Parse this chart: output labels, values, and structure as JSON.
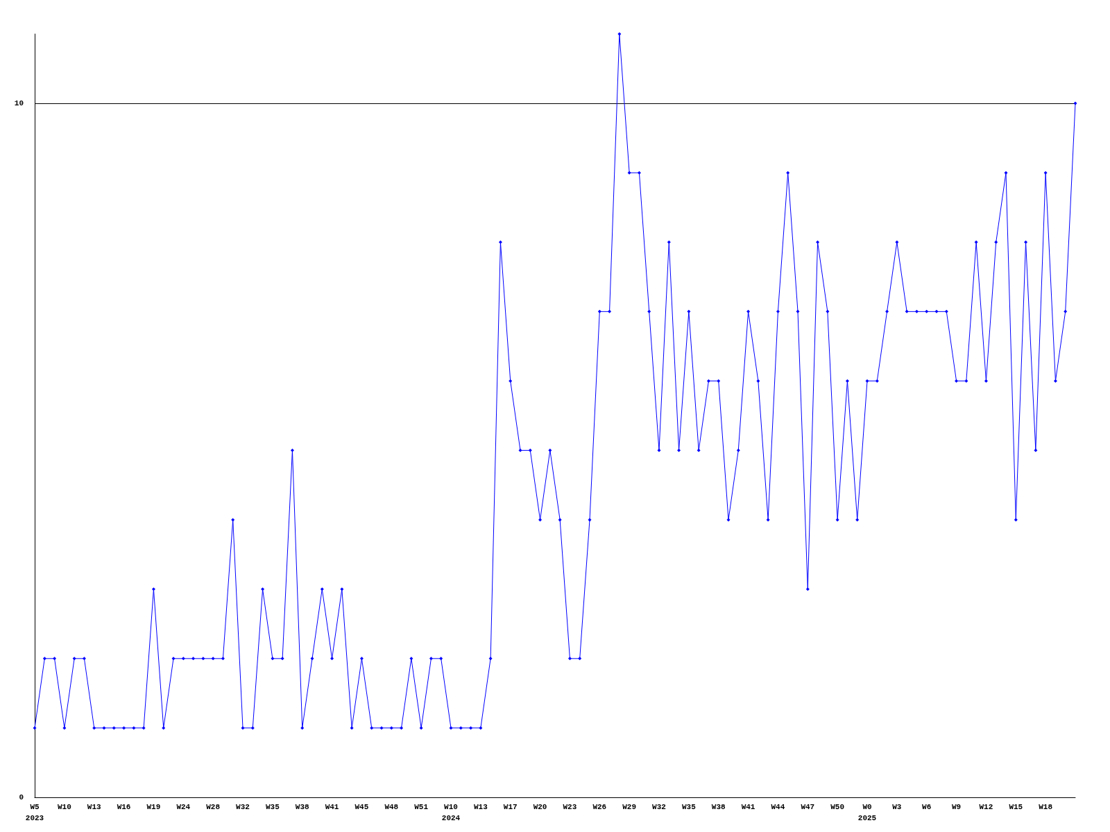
{
  "chart_data": {
    "type": "line",
    "categories": [
      "W5\n2023",
      null,
      null,
      "W10",
      null,
      null,
      "W13",
      null,
      null,
      "W16",
      null,
      null,
      "W19",
      null,
      null,
      "W24",
      null,
      null,
      "W28",
      null,
      null,
      "W32",
      null,
      null,
      "W35",
      null,
      null,
      "W38",
      null,
      null,
      "W41",
      null,
      null,
      "W45",
      null,
      null,
      "W48",
      null,
      null,
      "W51",
      null,
      null,
      "W10\n2024",
      null,
      null,
      "W13",
      null,
      null,
      "W17",
      null,
      null,
      "W20",
      null,
      null,
      "W23",
      null,
      null,
      "W26",
      null,
      null,
      "W29",
      null,
      null,
      "W32",
      null,
      null,
      "W35",
      null,
      null,
      "W38",
      null,
      null,
      "W41",
      null,
      null,
      "W44",
      null,
      null,
      "W47",
      null,
      null,
      "W50",
      null,
      null,
      "W0\n2025",
      null,
      null,
      "W3",
      null,
      null,
      "W6",
      null,
      null,
      "W9",
      null,
      null,
      "W12",
      null,
      null,
      "W15",
      null,
      null,
      "W18",
      null,
      null,
      null
    ],
    "series": [
      {
        "color": "#0000ff",
        "values": [
          1,
          2,
          2,
          1,
          2,
          2,
          1,
          1,
          1,
          1,
          1,
          1,
          3,
          1,
          2,
          2,
          2,
          2,
          2,
          2,
          4,
          1,
          1,
          3,
          2,
          2,
          5,
          1,
          2,
          3,
          2,
          3,
          1,
          2,
          1,
          1,
          1,
          1,
          2,
          1,
          2,
          2,
          1,
          1,
          1,
          1,
          2,
          8,
          6,
          5,
          5,
          4,
          5,
          4,
          2,
          2,
          4,
          7,
          7,
          11,
          9,
          9,
          7,
          5,
          8,
          5,
          7,
          5,
          6,
          6,
          4,
          5,
          7,
          6,
          4,
          7,
          9,
          7,
          3,
          8,
          7,
          4,
          6,
          4,
          6,
          6,
          7,
          8,
          7,
          7,
          7,
          7,
          7,
          6,
          6,
          8,
          6,
          8,
          9,
          4,
          8,
          5,
          9,
          6,
          7,
          10
        ]
      }
    ],
    "ylim": [
      0,
      11
    ],
    "yticks": [
      0,
      10
    ],
    "grid": "y",
    "marker": "diamond",
    "line_style": "solid"
  }
}
